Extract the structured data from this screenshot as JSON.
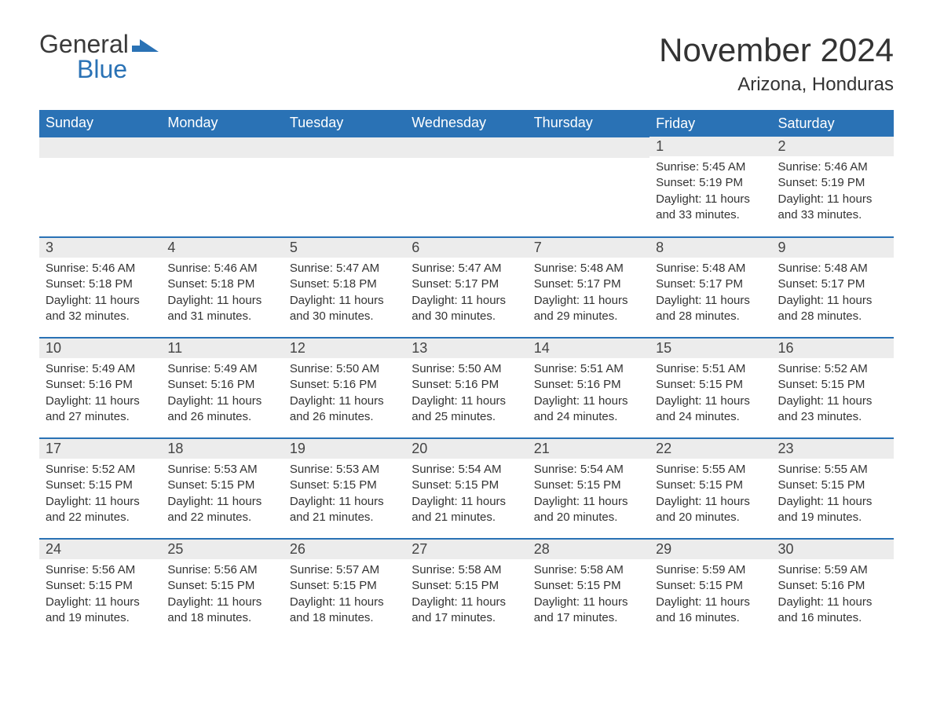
{
  "logo": {
    "line1": "General",
    "line2": "Blue",
    "mark_color": "#2a72b5"
  },
  "title": "November 2024",
  "location": "Arizona, Honduras",
  "colors": {
    "header_bg": "#2a72b5",
    "header_text": "#ffffff",
    "daynum_bg": "#ececec",
    "border": "#2a72b5",
    "text": "#333333",
    "background": "#ffffff"
  },
  "fonts": {
    "title_size_pt": 32,
    "location_size_pt": 18,
    "th_size_pt": 14,
    "daynum_size_pt": 14,
    "body_size_pt": 11
  },
  "weekdays": [
    "Sunday",
    "Monday",
    "Tuesday",
    "Wednesday",
    "Thursday",
    "Friday",
    "Saturday"
  ],
  "weeks": [
    [
      null,
      null,
      null,
      null,
      null,
      {
        "n": "1",
        "sunrise": "Sunrise: 5:45 AM",
        "sunset": "Sunset: 5:19 PM",
        "daylight1": "Daylight: 11 hours",
        "daylight2": "and 33 minutes."
      },
      {
        "n": "2",
        "sunrise": "Sunrise: 5:46 AM",
        "sunset": "Sunset: 5:19 PM",
        "daylight1": "Daylight: 11 hours",
        "daylight2": "and 33 minutes."
      }
    ],
    [
      {
        "n": "3",
        "sunrise": "Sunrise: 5:46 AM",
        "sunset": "Sunset: 5:18 PM",
        "daylight1": "Daylight: 11 hours",
        "daylight2": "and 32 minutes."
      },
      {
        "n": "4",
        "sunrise": "Sunrise: 5:46 AM",
        "sunset": "Sunset: 5:18 PM",
        "daylight1": "Daylight: 11 hours",
        "daylight2": "and 31 minutes."
      },
      {
        "n": "5",
        "sunrise": "Sunrise: 5:47 AM",
        "sunset": "Sunset: 5:18 PM",
        "daylight1": "Daylight: 11 hours",
        "daylight2": "and 30 minutes."
      },
      {
        "n": "6",
        "sunrise": "Sunrise: 5:47 AM",
        "sunset": "Sunset: 5:17 PM",
        "daylight1": "Daylight: 11 hours",
        "daylight2": "and 30 minutes."
      },
      {
        "n": "7",
        "sunrise": "Sunrise: 5:48 AM",
        "sunset": "Sunset: 5:17 PM",
        "daylight1": "Daylight: 11 hours",
        "daylight2": "and 29 minutes."
      },
      {
        "n": "8",
        "sunrise": "Sunrise: 5:48 AM",
        "sunset": "Sunset: 5:17 PM",
        "daylight1": "Daylight: 11 hours",
        "daylight2": "and 28 minutes."
      },
      {
        "n": "9",
        "sunrise": "Sunrise: 5:48 AM",
        "sunset": "Sunset: 5:17 PM",
        "daylight1": "Daylight: 11 hours",
        "daylight2": "and 28 minutes."
      }
    ],
    [
      {
        "n": "10",
        "sunrise": "Sunrise: 5:49 AM",
        "sunset": "Sunset: 5:16 PM",
        "daylight1": "Daylight: 11 hours",
        "daylight2": "and 27 minutes."
      },
      {
        "n": "11",
        "sunrise": "Sunrise: 5:49 AM",
        "sunset": "Sunset: 5:16 PM",
        "daylight1": "Daylight: 11 hours",
        "daylight2": "and 26 minutes."
      },
      {
        "n": "12",
        "sunrise": "Sunrise: 5:50 AM",
        "sunset": "Sunset: 5:16 PM",
        "daylight1": "Daylight: 11 hours",
        "daylight2": "and 26 minutes."
      },
      {
        "n": "13",
        "sunrise": "Sunrise: 5:50 AM",
        "sunset": "Sunset: 5:16 PM",
        "daylight1": "Daylight: 11 hours",
        "daylight2": "and 25 minutes."
      },
      {
        "n": "14",
        "sunrise": "Sunrise: 5:51 AM",
        "sunset": "Sunset: 5:16 PM",
        "daylight1": "Daylight: 11 hours",
        "daylight2": "and 24 minutes."
      },
      {
        "n": "15",
        "sunrise": "Sunrise: 5:51 AM",
        "sunset": "Sunset: 5:15 PM",
        "daylight1": "Daylight: 11 hours",
        "daylight2": "and 24 minutes."
      },
      {
        "n": "16",
        "sunrise": "Sunrise: 5:52 AM",
        "sunset": "Sunset: 5:15 PM",
        "daylight1": "Daylight: 11 hours",
        "daylight2": "and 23 minutes."
      }
    ],
    [
      {
        "n": "17",
        "sunrise": "Sunrise: 5:52 AM",
        "sunset": "Sunset: 5:15 PM",
        "daylight1": "Daylight: 11 hours",
        "daylight2": "and 22 minutes."
      },
      {
        "n": "18",
        "sunrise": "Sunrise: 5:53 AM",
        "sunset": "Sunset: 5:15 PM",
        "daylight1": "Daylight: 11 hours",
        "daylight2": "and 22 minutes."
      },
      {
        "n": "19",
        "sunrise": "Sunrise: 5:53 AM",
        "sunset": "Sunset: 5:15 PM",
        "daylight1": "Daylight: 11 hours",
        "daylight2": "and 21 minutes."
      },
      {
        "n": "20",
        "sunrise": "Sunrise: 5:54 AM",
        "sunset": "Sunset: 5:15 PM",
        "daylight1": "Daylight: 11 hours",
        "daylight2": "and 21 minutes."
      },
      {
        "n": "21",
        "sunrise": "Sunrise: 5:54 AM",
        "sunset": "Sunset: 5:15 PM",
        "daylight1": "Daylight: 11 hours",
        "daylight2": "and 20 minutes."
      },
      {
        "n": "22",
        "sunrise": "Sunrise: 5:55 AM",
        "sunset": "Sunset: 5:15 PM",
        "daylight1": "Daylight: 11 hours",
        "daylight2": "and 20 minutes."
      },
      {
        "n": "23",
        "sunrise": "Sunrise: 5:55 AM",
        "sunset": "Sunset: 5:15 PM",
        "daylight1": "Daylight: 11 hours",
        "daylight2": "and 19 minutes."
      }
    ],
    [
      {
        "n": "24",
        "sunrise": "Sunrise: 5:56 AM",
        "sunset": "Sunset: 5:15 PM",
        "daylight1": "Daylight: 11 hours",
        "daylight2": "and 19 minutes."
      },
      {
        "n": "25",
        "sunrise": "Sunrise: 5:56 AM",
        "sunset": "Sunset: 5:15 PM",
        "daylight1": "Daylight: 11 hours",
        "daylight2": "and 18 minutes."
      },
      {
        "n": "26",
        "sunrise": "Sunrise: 5:57 AM",
        "sunset": "Sunset: 5:15 PM",
        "daylight1": "Daylight: 11 hours",
        "daylight2": "and 18 minutes."
      },
      {
        "n": "27",
        "sunrise": "Sunrise: 5:58 AM",
        "sunset": "Sunset: 5:15 PM",
        "daylight1": "Daylight: 11 hours",
        "daylight2": "and 17 minutes."
      },
      {
        "n": "28",
        "sunrise": "Sunrise: 5:58 AM",
        "sunset": "Sunset: 5:15 PM",
        "daylight1": "Daylight: 11 hours",
        "daylight2": "and 17 minutes."
      },
      {
        "n": "29",
        "sunrise": "Sunrise: 5:59 AM",
        "sunset": "Sunset: 5:15 PM",
        "daylight1": "Daylight: 11 hours",
        "daylight2": "and 16 minutes."
      },
      {
        "n": "30",
        "sunrise": "Sunrise: 5:59 AM",
        "sunset": "Sunset: 5:16 PM",
        "daylight1": "Daylight: 11 hours",
        "daylight2": "and 16 minutes."
      }
    ]
  ]
}
